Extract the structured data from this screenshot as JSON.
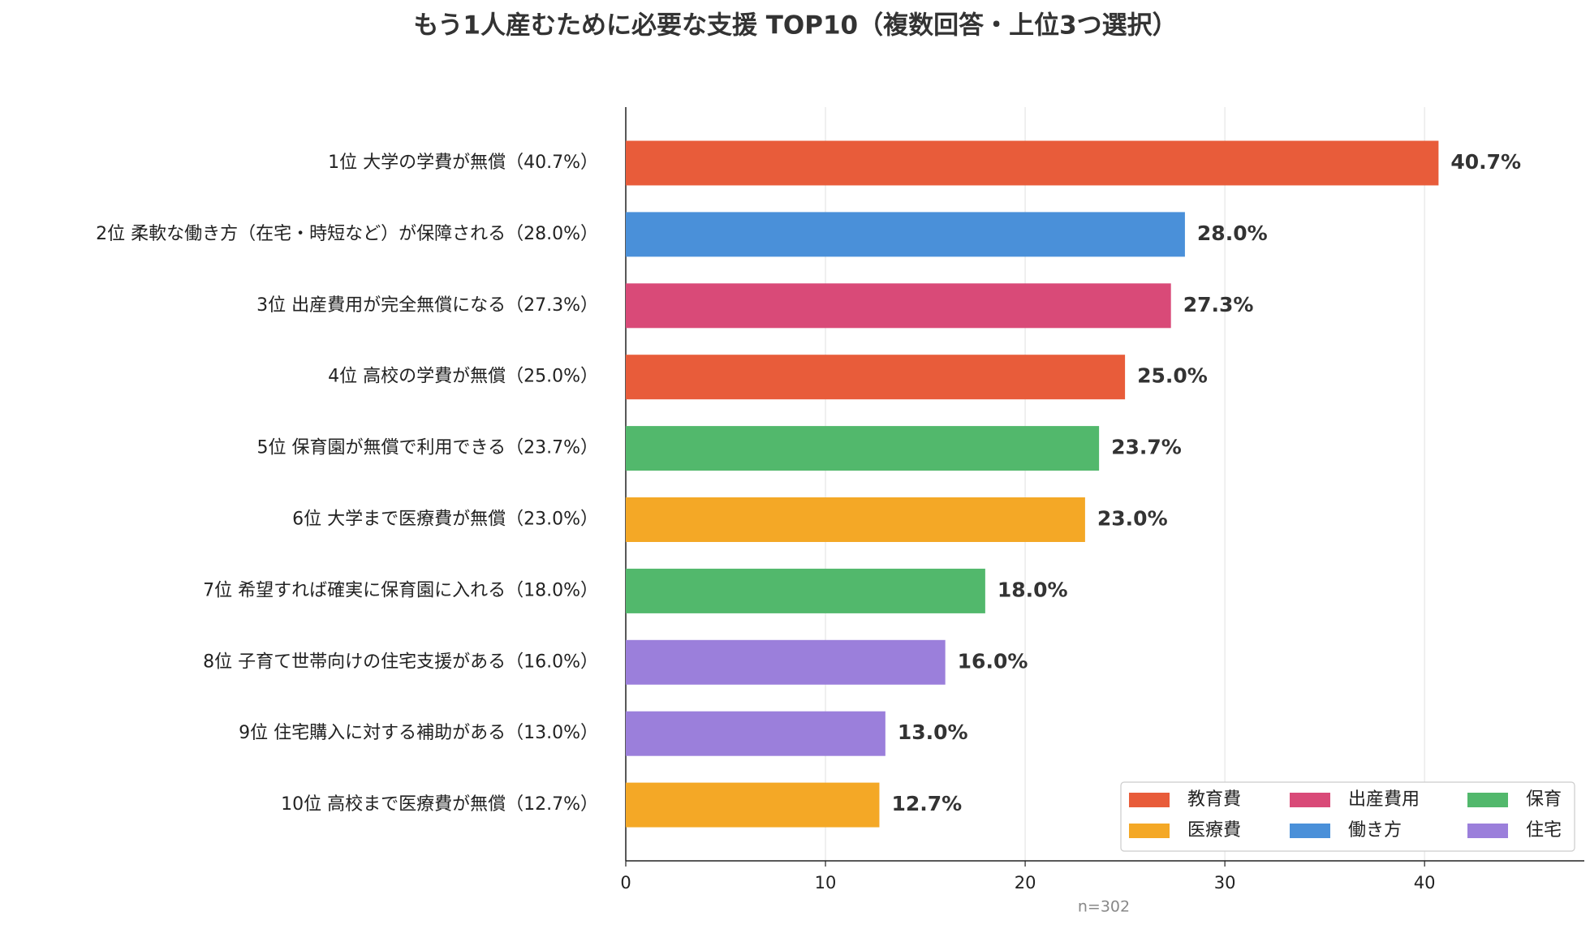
{
  "chart_data": {
    "type": "bar",
    "orientation": "horizontal",
    "title": "もう1人産むために必要な支援 TOP10（複数回答・上位3つ選択）",
    "categories": [
      "1位 大学の学費が無償（40.7%）",
      "2位 柔軟な働き方（在宅・時短など）が保障される（28.0%）",
      "3位 出産費用が完全無償になる（27.3%）",
      "4位 高校の学費が無償（25.0%）",
      "5位 保育園が無償で利用できる（23.7%）",
      "6位 大学まで医療費が無償（23.0%）",
      "7位 希望すれば確実に保育園に入れる（18.0%）",
      "8位 子育て世帯向けの住宅支援がある（16.0%）",
      "9位 住宅購入に対する補助がある（13.0%）",
      "10位 高校まで医療費が無償（12.7%）"
    ],
    "values": [
      40.7,
      28.0,
      27.3,
      25.0,
      23.7,
      23.0,
      18.0,
      16.0,
      13.0,
      12.7
    ],
    "value_labels": [
      "40.7%",
      "28.0%",
      "27.3%",
      "25.0%",
      "23.7%",
      "23.0%",
      "18.0%",
      "16.0%",
      "13.0%",
      "12.7%"
    ],
    "colors": [
      "#e85c3a",
      "#4a90d9",
      "#d94a78",
      "#e85c3a",
      "#52b86c",
      "#f4a826",
      "#52b86c",
      "#9b7fdb",
      "#9b7fdb",
      "#f4a826"
    ],
    "legend": [
      {
        "name": "教育費",
        "color": "#e85c3a"
      },
      {
        "name": "出産費用",
        "color": "#d94a78"
      },
      {
        "name": "保育",
        "color": "#52b86c"
      },
      {
        "name": "医療費",
        "color": "#f4a826"
      },
      {
        "name": "働き方",
        "color": "#4a90d9"
      },
      {
        "name": "住宅",
        "color": "#9b7fdb"
      }
    ],
    "legend_position": "lower right",
    "xlim": [
      0,
      48
    ],
    "xticks": [
      0,
      10,
      20,
      30,
      40
    ],
    "grid": true,
    "note": "n=302"
  }
}
